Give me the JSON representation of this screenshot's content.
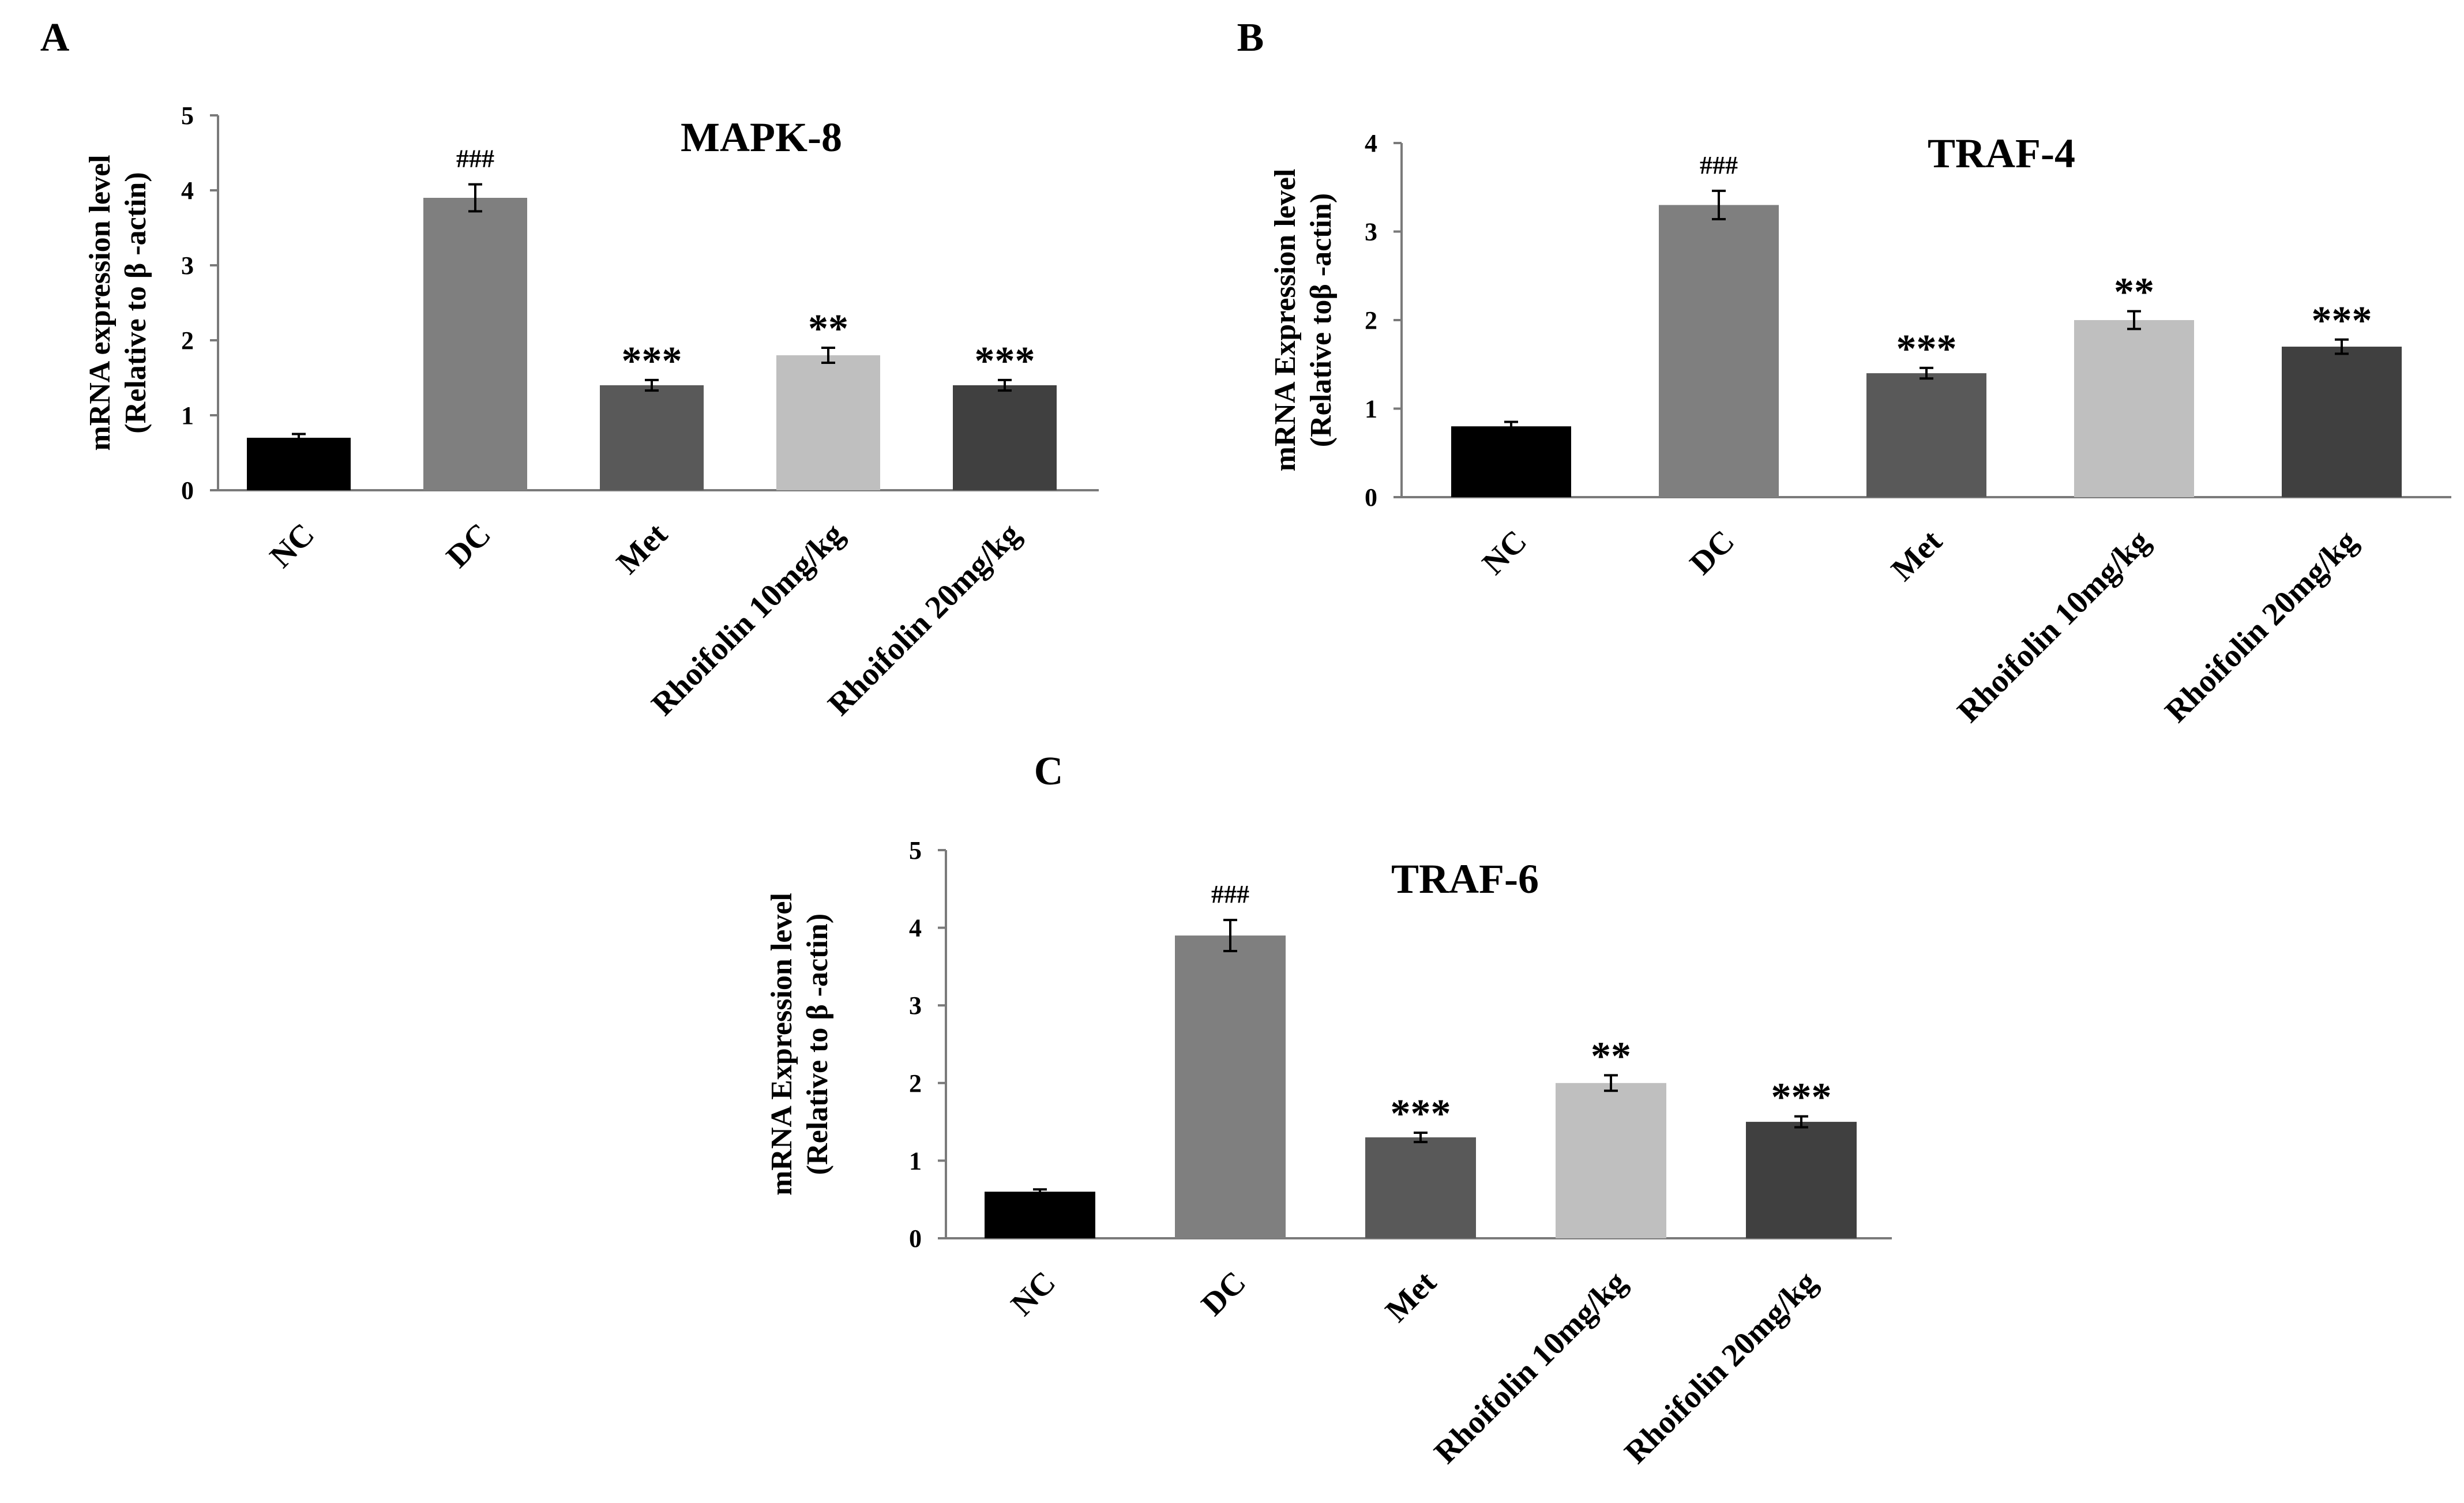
{
  "chart_data": [
    {
      "panel": "A",
      "type": "bar",
      "title": "MAPK-8",
      "ylabel": [
        "mRNA expression level",
        "(Relative to β -actin)"
      ],
      "xlabel": "",
      "ylim": [
        0,
        5
      ],
      "yticks": [
        0,
        1,
        2,
        3,
        4,
        5
      ],
      "categories": [
        "NC",
        "DC",
        "Met",
        "Rhoifolin 10mg/kg",
        "Rhoifolin 20mg/kg"
      ],
      "values": [
        0.7,
        3.9,
        1.4,
        1.8,
        1.4
      ],
      "errors": [
        0.05,
        0.18,
        0.07,
        0.1,
        0.07
      ],
      "colors": [
        "#000000",
        "#7f7f7f",
        "#595959",
        "#bfbfbf",
        "#404040"
      ],
      "annotations": [
        "",
        "###",
        "***",
        "**",
        "***"
      ]
    },
    {
      "panel": "B",
      "type": "bar",
      "title": "TRAF-4",
      "ylabel": [
        "mRNA Expression level",
        "(Relative toβ -actin)"
      ],
      "xlabel": "",
      "ylim": [
        0,
        4
      ],
      "yticks": [
        0,
        1,
        2,
        3,
        4
      ],
      "categories": [
        "NC",
        "DC",
        "Met",
        "Rhoifolin 10mg/kg",
        "Rhoifolin 20mg/kg"
      ],
      "values": [
        0.8,
        3.3,
        1.4,
        2.0,
        1.7
      ],
      "errors": [
        0.05,
        0.16,
        0.06,
        0.1,
        0.08
      ],
      "colors": [
        "#000000",
        "#7f7f7f",
        "#595959",
        "#bfbfbf",
        "#404040"
      ],
      "annotations": [
        "",
        "###",
        "***",
        "**",
        "***"
      ]
    },
    {
      "panel": "C",
      "type": "bar",
      "title": "TRAF-6",
      "ylabel": [
        "mRNA Expression level",
        "(Relative to β -actin)"
      ],
      "xlabel": "",
      "ylim": [
        0,
        5
      ],
      "yticks": [
        0,
        1,
        2,
        3,
        4,
        5
      ],
      "categories": [
        "NC",
        "DC",
        "Met",
        "Rhoifolin 10mg/kg",
        "Rhoifolin 20mg/kg"
      ],
      "values": [
        0.6,
        3.9,
        1.3,
        2.0,
        1.5
      ],
      "errors": [
        0.03,
        0.2,
        0.06,
        0.1,
        0.07
      ],
      "colors": [
        "#000000",
        "#7f7f7f",
        "#595959",
        "#bfbfbf",
        "#404040"
      ],
      "annotations": [
        "",
        "###",
        "***",
        "**",
        "***"
      ]
    }
  ]
}
